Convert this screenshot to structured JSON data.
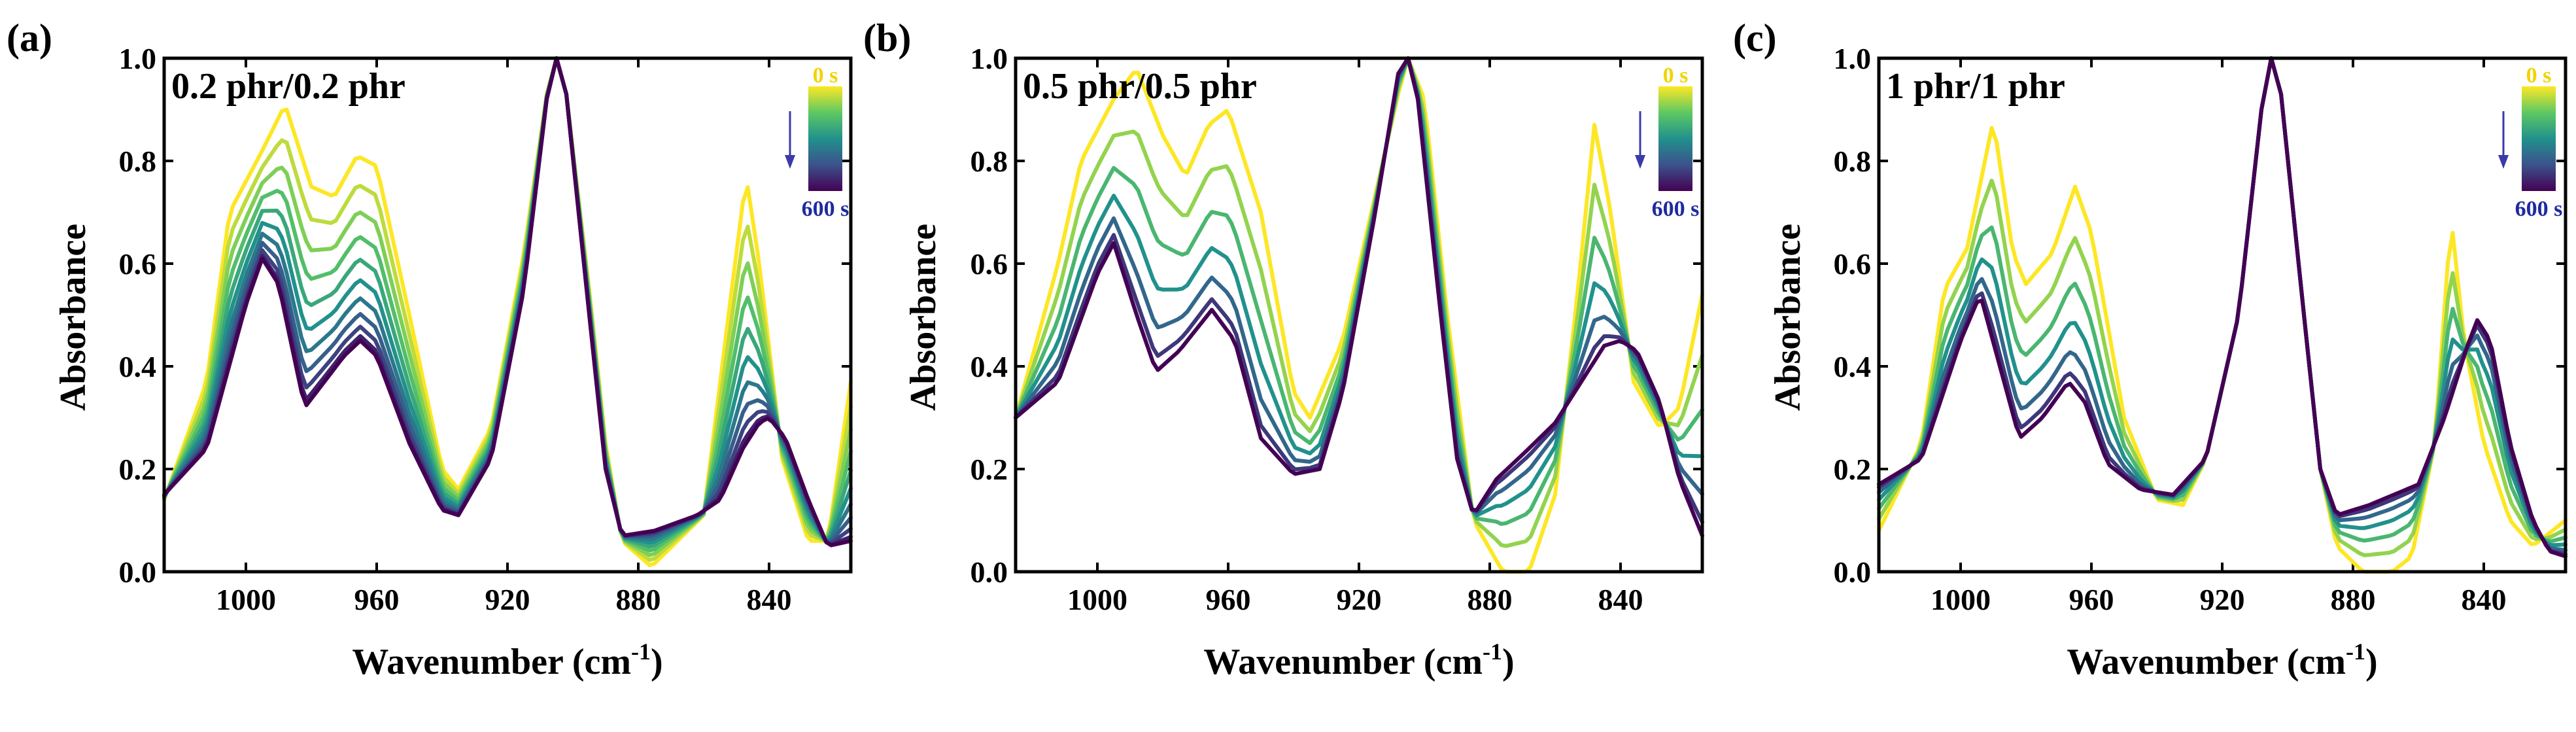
{
  "chart_data": [
    {
      "type": "line",
      "panel": "(a)",
      "annotation": "0.2 phr/0.2 phr",
      "xlabel": "Wavenumber",
      "xlabel_unit": "(cm",
      "xlabel_unit_exp": "-1",
      "xlabel_unit_close": ")",
      "ylabel": "Absorbance",
      "xlim": [
        1025,
        815
      ],
      "ylim": [
        0,
        1.0
      ],
      "x_ticks": [
        1000,
        960,
        920,
        880,
        840
      ],
      "y_ticks": [
        0.0,
        0.2,
        0.4,
        0.6,
        0.8,
        1.0
      ],
      "colorbar": {
        "top_label": "0 s",
        "bottom_label": "600 s"
      },
      "series_count": 11,
      "baseline": [
        [
          1025,
          0.15
        ],
        [
          1012,
          0.24
        ],
        [
          1000,
          0.52
        ],
        [
          995,
          0.61
        ],
        [
          990,
          0.56
        ],
        [
          982,
          0.32
        ],
        [
          970,
          0.42
        ],
        [
          965,
          0.45
        ],
        [
          960,
          0.42
        ],
        [
          950,
          0.25
        ],
        [
          940,
          0.12
        ],
        [
          935,
          0.11
        ],
        [
          925,
          0.22
        ],
        [
          915,
          0.55
        ],
        [
          908,
          0.92
        ],
        [
          905,
          1.0
        ],
        [
          902,
          0.93
        ],
        [
          895,
          0.5
        ],
        [
          890,
          0.2
        ],
        [
          885,
          0.07
        ],
        [
          875,
          0.08
        ],
        [
          862,
          0.11
        ],
        [
          855,
          0.14
        ],
        [
          848,
          0.24
        ],
        [
          843,
          0.29
        ],
        [
          840,
          0.3
        ],
        [
          835,
          0.26
        ],
        [
          828,
          0.14
        ],
        [
          822,
          0.05
        ],
        [
          815,
          0.06
        ]
      ],
      "initial": [
        [
          1025,
          0.14
        ],
        [
          1012,
          0.37
        ],
        [
          1005,
          0.7
        ],
        [
          995,
          0.82
        ],
        [
          988,
          0.91
        ],
        [
          980,
          0.75
        ],
        [
          973,
          0.73
        ],
        [
          966,
          0.81
        ],
        [
          960,
          0.79
        ],
        [
          950,
          0.5
        ],
        [
          940,
          0.2
        ],
        [
          935,
          0.16
        ],
        [
          925,
          0.28
        ],
        [
          915,
          0.62
        ],
        [
          908,
          0.93
        ],
        [
          905,
          1.0
        ],
        [
          902,
          0.93
        ],
        [
          895,
          0.55
        ],
        [
          890,
          0.25
        ],
        [
          885,
          0.06
        ],
        [
          876,
          0.01
        ],
        [
          868,
          0.06
        ],
        [
          860,
          0.11
        ],
        [
          852,
          0.52
        ],
        [
          847,
          0.77
        ],
        [
          843,
          0.6
        ],
        [
          836,
          0.22
        ],
        [
          828,
          0.06
        ],
        [
          822,
          0.06
        ],
        [
          815,
          0.37
        ]
      ]
    },
    {
      "type": "line",
      "panel": "(b)",
      "annotation": "0.5 phr/0.5 phr",
      "xlabel": "Wavenumber",
      "xlabel_unit": "(cm",
      "xlabel_unit_exp": "-1",
      "xlabel_unit_close": ")",
      "ylabel": "Absorbance",
      "xlim": [
        1025,
        815
      ],
      "ylim": [
        0,
        1.0
      ],
      "x_ticks": [
        1000,
        960,
        920,
        880,
        840
      ],
      "y_ticks": [
        0.0,
        0.2,
        0.4,
        0.6,
        0.8,
        1.0
      ],
      "colorbar": {
        "top_label": "0 s",
        "bottom_label": "600 s"
      },
      "series_count": 7,
      "baseline": [
        [
          1025,
          0.3
        ],
        [
          1012,
          0.37
        ],
        [
          1000,
          0.58
        ],
        [
          995,
          0.64
        ],
        [
          988,
          0.5
        ],
        [
          982,
          0.39
        ],
        [
          975,
          0.43
        ],
        [
          965,
          0.51
        ],
        [
          958,
          0.45
        ],
        [
          950,
          0.26
        ],
        [
          940,
          0.19
        ],
        [
          932,
          0.2
        ],
        [
          925,
          0.35
        ],
        [
          915,
          0.7
        ],
        [
          908,
          0.97
        ],
        [
          905,
          1.0
        ],
        [
          902,
          0.92
        ],
        [
          895,
          0.5
        ],
        [
          890,
          0.22
        ],
        [
          885,
          0.11
        ],
        [
          878,
          0.18
        ],
        [
          868,
          0.24
        ],
        [
          860,
          0.29
        ],
        [
          852,
          0.37
        ],
        [
          845,
          0.44
        ],
        [
          840,
          0.45
        ],
        [
          835,
          0.43
        ],
        [
          828,
          0.33
        ],
        [
          822,
          0.18
        ],
        [
          815,
          0.07
        ]
      ],
      "initial": [
        [
          1025,
          0.3
        ],
        [
          1012,
          0.6
        ],
        [
          1005,
          0.8
        ],
        [
          995,
          0.92
        ],
        [
          988,
          0.98
        ],
        [
          980,
          0.85
        ],
        [
          973,
          0.77
        ],
        [
          966,
          0.87
        ],
        [
          960,
          0.9
        ],
        [
          950,
          0.7
        ],
        [
          940,
          0.35
        ],
        [
          935,
          0.3
        ],
        [
          925,
          0.45
        ],
        [
          918,
          0.65
        ],
        [
          908,
          0.93
        ],
        [
          905,
          1.0
        ],
        [
          900,
          0.92
        ],
        [
          893,
          0.5
        ],
        [
          885,
          0.1
        ],
        [
          876,
          0.0
        ],
        [
          868,
          0.0
        ],
        [
          860,
          0.15
        ],
        [
          853,
          0.55
        ],
        [
          848,
          0.87
        ],
        [
          843,
          0.7
        ],
        [
          836,
          0.37
        ],
        [
          828,
          0.28
        ],
        [
          822,
          0.32
        ],
        [
          815,
          0.54
        ]
      ]
    },
    {
      "type": "line",
      "panel": "(c)",
      "annotation": "1 phr/1 phr",
      "xlabel": "Wavenumber",
      "xlabel_unit": "(cm",
      "xlabel_unit_exp": "-1",
      "xlabel_unit_close": ")",
      "ylabel": "Absorbance",
      "xlim": [
        1025,
        815
      ],
      "ylim": [
        0,
        1.0
      ],
      "x_ticks": [
        1000,
        960,
        920,
        880,
        840
      ],
      "y_ticks": [
        0.0,
        0.2,
        0.4,
        0.6,
        0.8,
        1.0
      ],
      "colorbar": {
        "top_label": "0 s",
        "bottom_label": "600 s"
      },
      "series_count": 7,
      "baseline": [
        [
          1025,
          0.17
        ],
        [
          1012,
          0.22
        ],
        [
          1000,
          0.45
        ],
        [
          994,
          0.54
        ],
        [
          988,
          0.4
        ],
        [
          982,
          0.26
        ],
        [
          975,
          0.3
        ],
        [
          967,
          0.37
        ],
        [
          962,
          0.33
        ],
        [
          955,
          0.21
        ],
        [
          945,
          0.16
        ],
        [
          935,
          0.15
        ],
        [
          925,
          0.22
        ],
        [
          915,
          0.5
        ],
        [
          908,
          0.9
        ],
        [
          905,
          1.0
        ],
        [
          902,
          0.93
        ],
        [
          895,
          0.5
        ],
        [
          890,
          0.2
        ],
        [
          885,
          0.11
        ],
        [
          875,
          0.13
        ],
        [
          860,
          0.17
        ],
        [
          852,
          0.3
        ],
        [
          845,
          0.44
        ],
        [
          842,
          0.49
        ],
        [
          838,
          0.45
        ],
        [
          832,
          0.25
        ],
        [
          825,
          0.1
        ],
        [
          820,
          0.04
        ],
        [
          815,
          0.03
        ]
      ],
      "initial": [
        [
          1025,
          0.08
        ],
        [
          1012,
          0.25
        ],
        [
          1005,
          0.55
        ],
        [
          998,
          0.63
        ],
        [
          990,
          0.88
        ],
        [
          984,
          0.62
        ],
        [
          980,
          0.56
        ],
        [
          972,
          0.62
        ],
        [
          965,
          0.75
        ],
        [
          960,
          0.66
        ],
        [
          950,
          0.3
        ],
        [
          940,
          0.14
        ],
        [
          932,
          0.13
        ],
        [
          925,
          0.22
        ],
        [
          915,
          0.5
        ],
        [
          908,
          0.9
        ],
        [
          905,
          1.0
        ],
        [
          902,
          0.93
        ],
        [
          895,
          0.5
        ],
        [
          890,
          0.2
        ],
        [
          885,
          0.05
        ],
        [
          877,
          0.0
        ],
        [
          868,
          0.0
        ],
        [
          862,
          0.03
        ],
        [
          855,
          0.25
        ],
        [
          850,
          0.69
        ],
        [
          846,
          0.45
        ],
        [
          840,
          0.25
        ],
        [
          832,
          0.1
        ],
        [
          825,
          0.05
        ],
        [
          815,
          0.1
        ]
      ]
    }
  ]
}
